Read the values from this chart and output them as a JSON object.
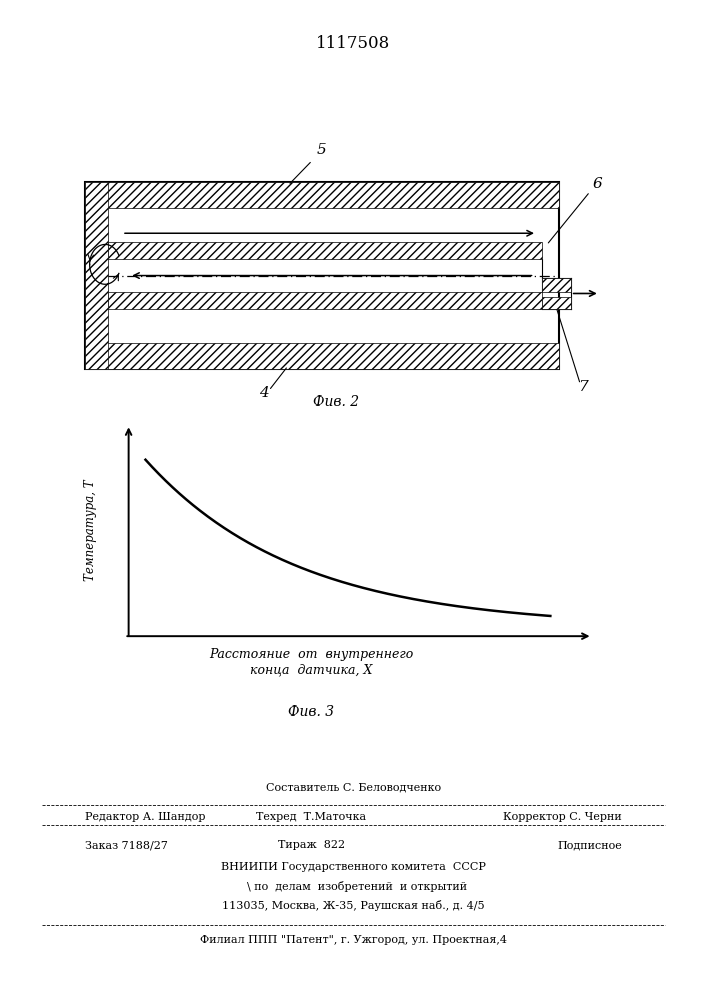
{
  "patent_number": "1117508",
  "bg_color": "#ffffff",
  "fig2_label": "Фив. 2",
  "fig3_label": "Фив. 3",
  "ylabel": "Температура, T",
  "xlabel_line1": "Расстояние  от  внутреннего",
  "xlabel_line2": "конца  датчика, X",
  "labels": {
    "n4": "4",
    "n5": "5",
    "n6": "6",
    "n7": "7"
  },
  "footer_composer": "Составитель С. Беловодченко",
  "footer_editor": "Редактор А. Шандор",
  "footer_techred": "Техред  Т.Маточка",
  "footer_corrector": "Корректор С. Черни",
  "footer_order": "Заказ 7188/27",
  "footer_tirage": "Тираж  822",
  "footer_signed": "Подписное",
  "footer_vnipi": "ВНИИПИ Государственного комитета  СССР",
  "footer_affairs": "  \\ по  делам  изобретений  и открытий",
  "footer_address": "113035, Москва, Ж-35, Раушская наб., д. 4/5",
  "footer_branch": "Филиал ППП \"Патент\", г. Ужгород, ул. Проектная,4"
}
